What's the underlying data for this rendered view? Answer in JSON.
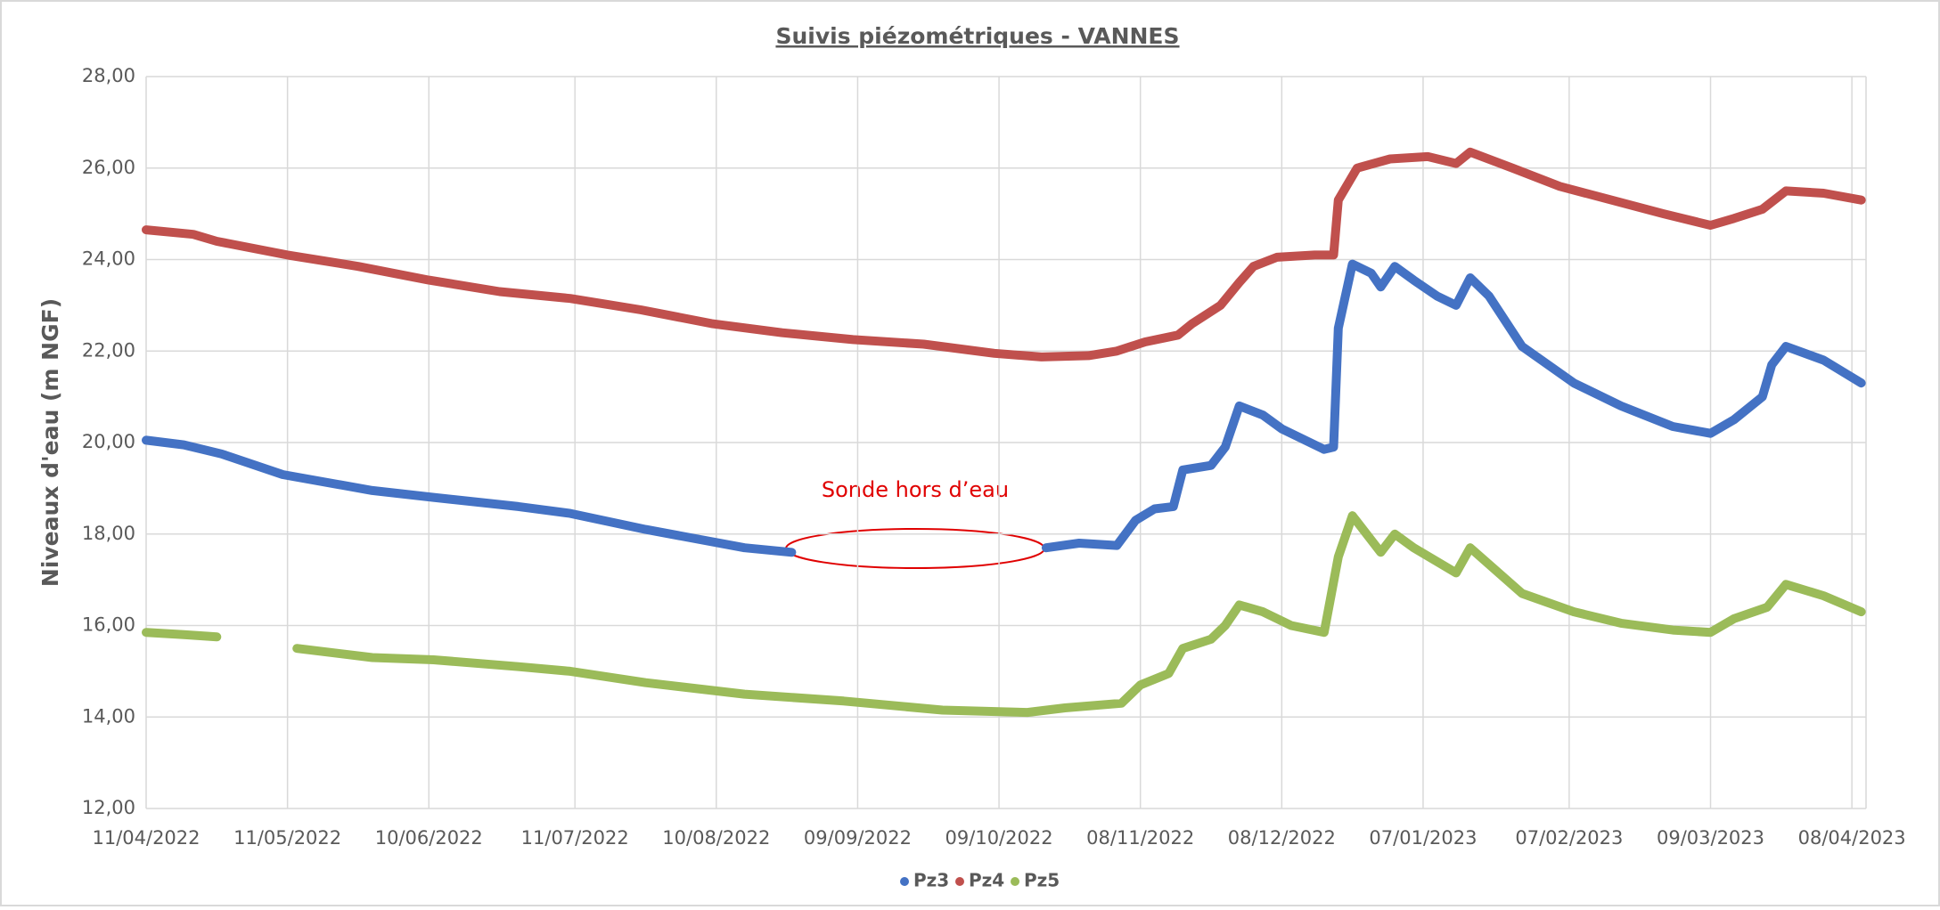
{
  "chart_data": {
    "type": "line",
    "title": "Suivis piézométriques - VANNES",
    "ylabel": "Niveaux d'eau (m NGF)",
    "annotation": "Sonde hors d’eau",
    "grid": true,
    "legend": "bottom",
    "xlim": [
      "2022-04-11",
      "2023-04-11"
    ],
    "xticks": [
      {
        "value": "2022-04-11",
        "label": "11/04/2022"
      },
      {
        "value": "2022-05-11",
        "label": "11/05/2022"
      },
      {
        "value": "2022-06-10",
        "label": "10/06/2022"
      },
      {
        "value": "2022-07-11",
        "label": "11/07/2022"
      },
      {
        "value": "2022-08-10",
        "label": "10/08/2022"
      },
      {
        "value": "2022-09-09",
        "label": "09/09/2022"
      },
      {
        "value": "2022-10-09",
        "label": "09/10/2022"
      },
      {
        "value": "2022-11-08",
        "label": "08/11/2022"
      },
      {
        "value": "2022-12-08",
        "label": "08/12/2022"
      },
      {
        "value": "2023-01-07",
        "label": "07/01/2023"
      },
      {
        "value": "2023-02-07",
        "label": "07/02/2023"
      },
      {
        "value": "2023-03-09",
        "label": "09/03/2023"
      },
      {
        "value": "2023-04-08",
        "label": "08/04/2023"
      }
    ],
    "ylim": [
      12,
      28
    ],
    "yticks": [
      {
        "value": 12,
        "label": "12,00"
      },
      {
        "value": 14,
        "label": "14,00"
      },
      {
        "value": 16,
        "label": "16,00"
      },
      {
        "value": 18,
        "label": "18,00"
      },
      {
        "value": 20,
        "label": "20,00"
      },
      {
        "value": 22,
        "label": "22,00"
      },
      {
        "value": 24,
        "label": "24,00"
      },
      {
        "value": 26,
        "label": "26,00"
      },
      {
        "value": 28,
        "label": "28,00"
      }
    ],
    "series": [
      {
        "name": "Pz3",
        "color": "#4472c4",
        "x": [
          "2022-04-11",
          "2022-04-19",
          "2022-04-27",
          "2022-05-10",
          "2022-05-29",
          "2022-06-11",
          "2022-06-29",
          "2022-07-10",
          "2022-07-26",
          "2022-08-16",
          "2022-08-26",
          "2022-09-18",
          "2022-10-19",
          "2022-10-26",
          "2022-11-03",
          "2022-11-07",
          "2022-11-11",
          "2022-11-15",
          "2022-11-17",
          "2022-11-23",
          "2022-11-26",
          "2022-11-29",
          "2022-12-04",
          "2022-12-08",
          "2022-12-17",
          "2022-12-19",
          "2022-12-20",
          "2022-12-23",
          "2022-12-27",
          "2022-12-29",
          "2023-01-01",
          "2023-01-05",
          "2023-01-10",
          "2023-01-14",
          "2023-01-17",
          "2023-01-21",
          "2023-01-28",
          "2023-02-08",
          "2023-02-18",
          "2023-03-01",
          "2023-03-09",
          "2023-03-14",
          "2023-03-20",
          "2023-03-22",
          "2023-03-25",
          "2023-04-02",
          "2023-04-10"
        ],
        "values": [
          20.05,
          19.95,
          19.75,
          19.3,
          18.95,
          18.8,
          18.6,
          18.45,
          18.1,
          17.7,
          17.6,
          null,
          17.7,
          17.8,
          17.75,
          18.3,
          18.55,
          18.6,
          19.4,
          19.5,
          19.9,
          20.8,
          20.6,
          20.3,
          19.85,
          19.9,
          22.5,
          23.9,
          23.7,
          23.4,
          23.85,
          23.55,
          23.2,
          23.0,
          23.6,
          23.2,
          22.1,
          21.3,
          20.8,
          20.35,
          20.2,
          20.5,
          21.0,
          21.7,
          22.1,
          21.8,
          21.3
        ]
      },
      {
        "name": "Pz4",
        "color": "#c0504d",
        "x": [
          "2022-04-11",
          "2022-04-21",
          "2022-04-26",
          "2022-05-11",
          "2022-05-26",
          "2022-06-10",
          "2022-06-25",
          "2022-07-10",
          "2022-07-25",
          "2022-08-09",
          "2022-08-24",
          "2022-09-08",
          "2022-09-23",
          "2022-10-08",
          "2022-10-18",
          "2022-10-28",
          "2022-11-03",
          "2022-11-09",
          "2022-11-16",
          "2022-11-19",
          "2022-11-25",
          "2022-11-29",
          "2022-12-02",
          "2022-12-07",
          "2022-12-15",
          "2022-12-19",
          "2022-12-20",
          "2022-12-24",
          "2022-12-31",
          "2023-01-08",
          "2023-01-14",
          "2023-01-17",
          "2023-01-26",
          "2023-02-05",
          "2023-02-16",
          "2023-02-27",
          "2023-03-09",
          "2023-03-14",
          "2023-03-20",
          "2023-03-25",
          "2023-04-02",
          "2023-04-10"
        ],
        "values": [
          24.65,
          24.55,
          24.4,
          24.1,
          23.85,
          23.55,
          23.3,
          23.15,
          22.9,
          22.6,
          22.4,
          22.25,
          22.15,
          21.95,
          21.87,
          21.9,
          22.0,
          22.2,
          22.35,
          22.6,
          23.0,
          23.5,
          23.85,
          24.05,
          24.1,
          24.1,
          25.3,
          26.0,
          26.2,
          26.25,
          26.1,
          26.35,
          26.0,
          25.6,
          25.3,
          25.0,
          24.75,
          24.9,
          25.1,
          25.5,
          25.45,
          25.3
        ]
      },
      {
        "name": "Pz5",
        "color": "#9bbb59",
        "x": [
          "2022-04-11",
          "2022-04-19",
          "2022-04-26",
          "2022-05-05",
          "2022-05-13",
          "2022-05-29",
          "2022-06-11",
          "2022-06-29",
          "2022-07-10",
          "2022-07-26",
          "2022-08-16",
          "2022-09-06",
          "2022-09-27",
          "2022-10-15",
          "2022-10-23",
          "2022-11-04",
          "2022-11-08",
          "2022-11-14",
          "2022-11-17",
          "2022-11-23",
          "2022-11-26",
          "2022-11-29",
          "2022-12-04",
          "2022-12-10",
          "2022-12-17",
          "2022-12-20",
          "2022-12-23",
          "2022-12-29",
          "2023-01-01",
          "2023-01-05",
          "2023-01-14",
          "2023-01-17",
          "2023-01-28",
          "2023-02-08",
          "2023-02-18",
          "2023-03-01",
          "2023-03-09",
          "2023-03-14",
          "2023-03-21",
          "2023-03-25",
          "2023-04-02",
          "2023-04-10"
        ],
        "values": [
          15.85,
          15.8,
          15.75,
          null,
          15.5,
          15.3,
          15.25,
          15.1,
          15.0,
          14.75,
          14.5,
          14.35,
          14.15,
          14.1,
          14.2,
          14.3,
          14.7,
          14.95,
          15.5,
          15.7,
          16.0,
          16.45,
          16.3,
          16.0,
          15.85,
          17.5,
          18.4,
          17.6,
          18.0,
          17.7,
          17.15,
          17.7,
          16.7,
          16.3,
          16.05,
          15.9,
          15.85,
          16.15,
          16.4,
          16.9,
          16.65,
          16.3
        ]
      }
    ]
  }
}
